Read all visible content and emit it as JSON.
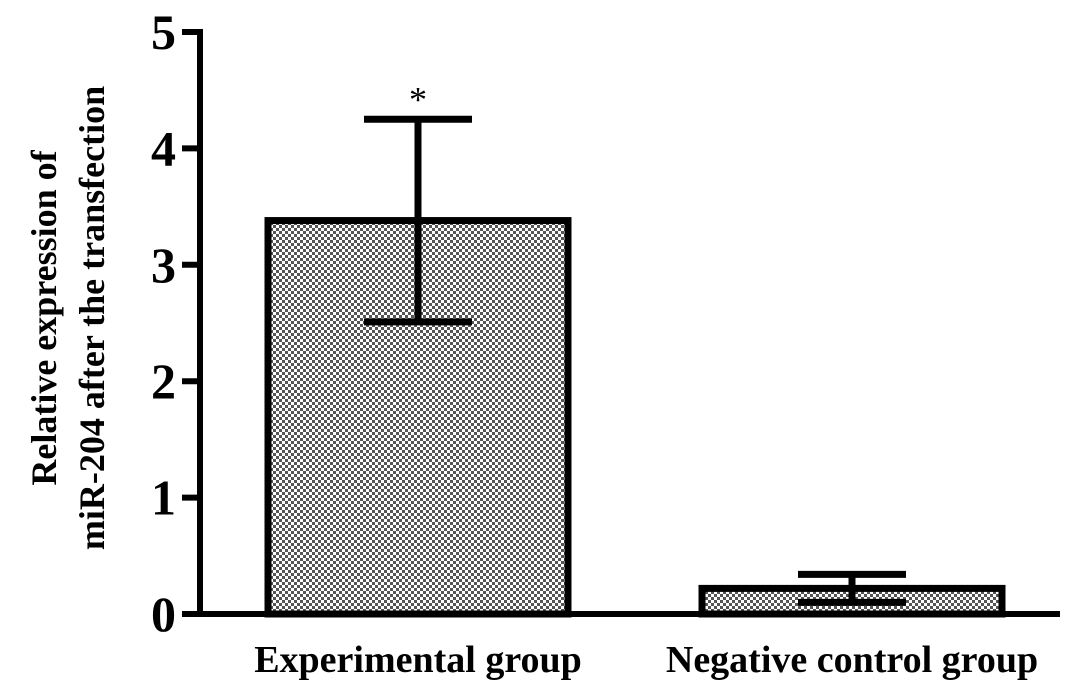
{
  "chart_data": {
    "type": "bar",
    "categories": [
      "Experimental group",
      "Negative control group"
    ],
    "values": [
      3.38,
      0.22
    ],
    "error": [
      0.87,
      0.12
    ],
    "annotations": [
      "*",
      ""
    ],
    "ylabel_lines": [
      "Relative expression of",
      "miR-204 after the transfection"
    ],
    "xlabel": "",
    "ylim": [
      0,
      5
    ],
    "yticks": [
      "0",
      "1",
      "2",
      "3",
      "4",
      "5"
    ],
    "grid": false,
    "bar_fill": "checkered gray pattern",
    "colors": {
      "bar_stroke": "#000000",
      "pattern_dark": "#555555",
      "pattern_light": "#ffffff"
    }
  }
}
